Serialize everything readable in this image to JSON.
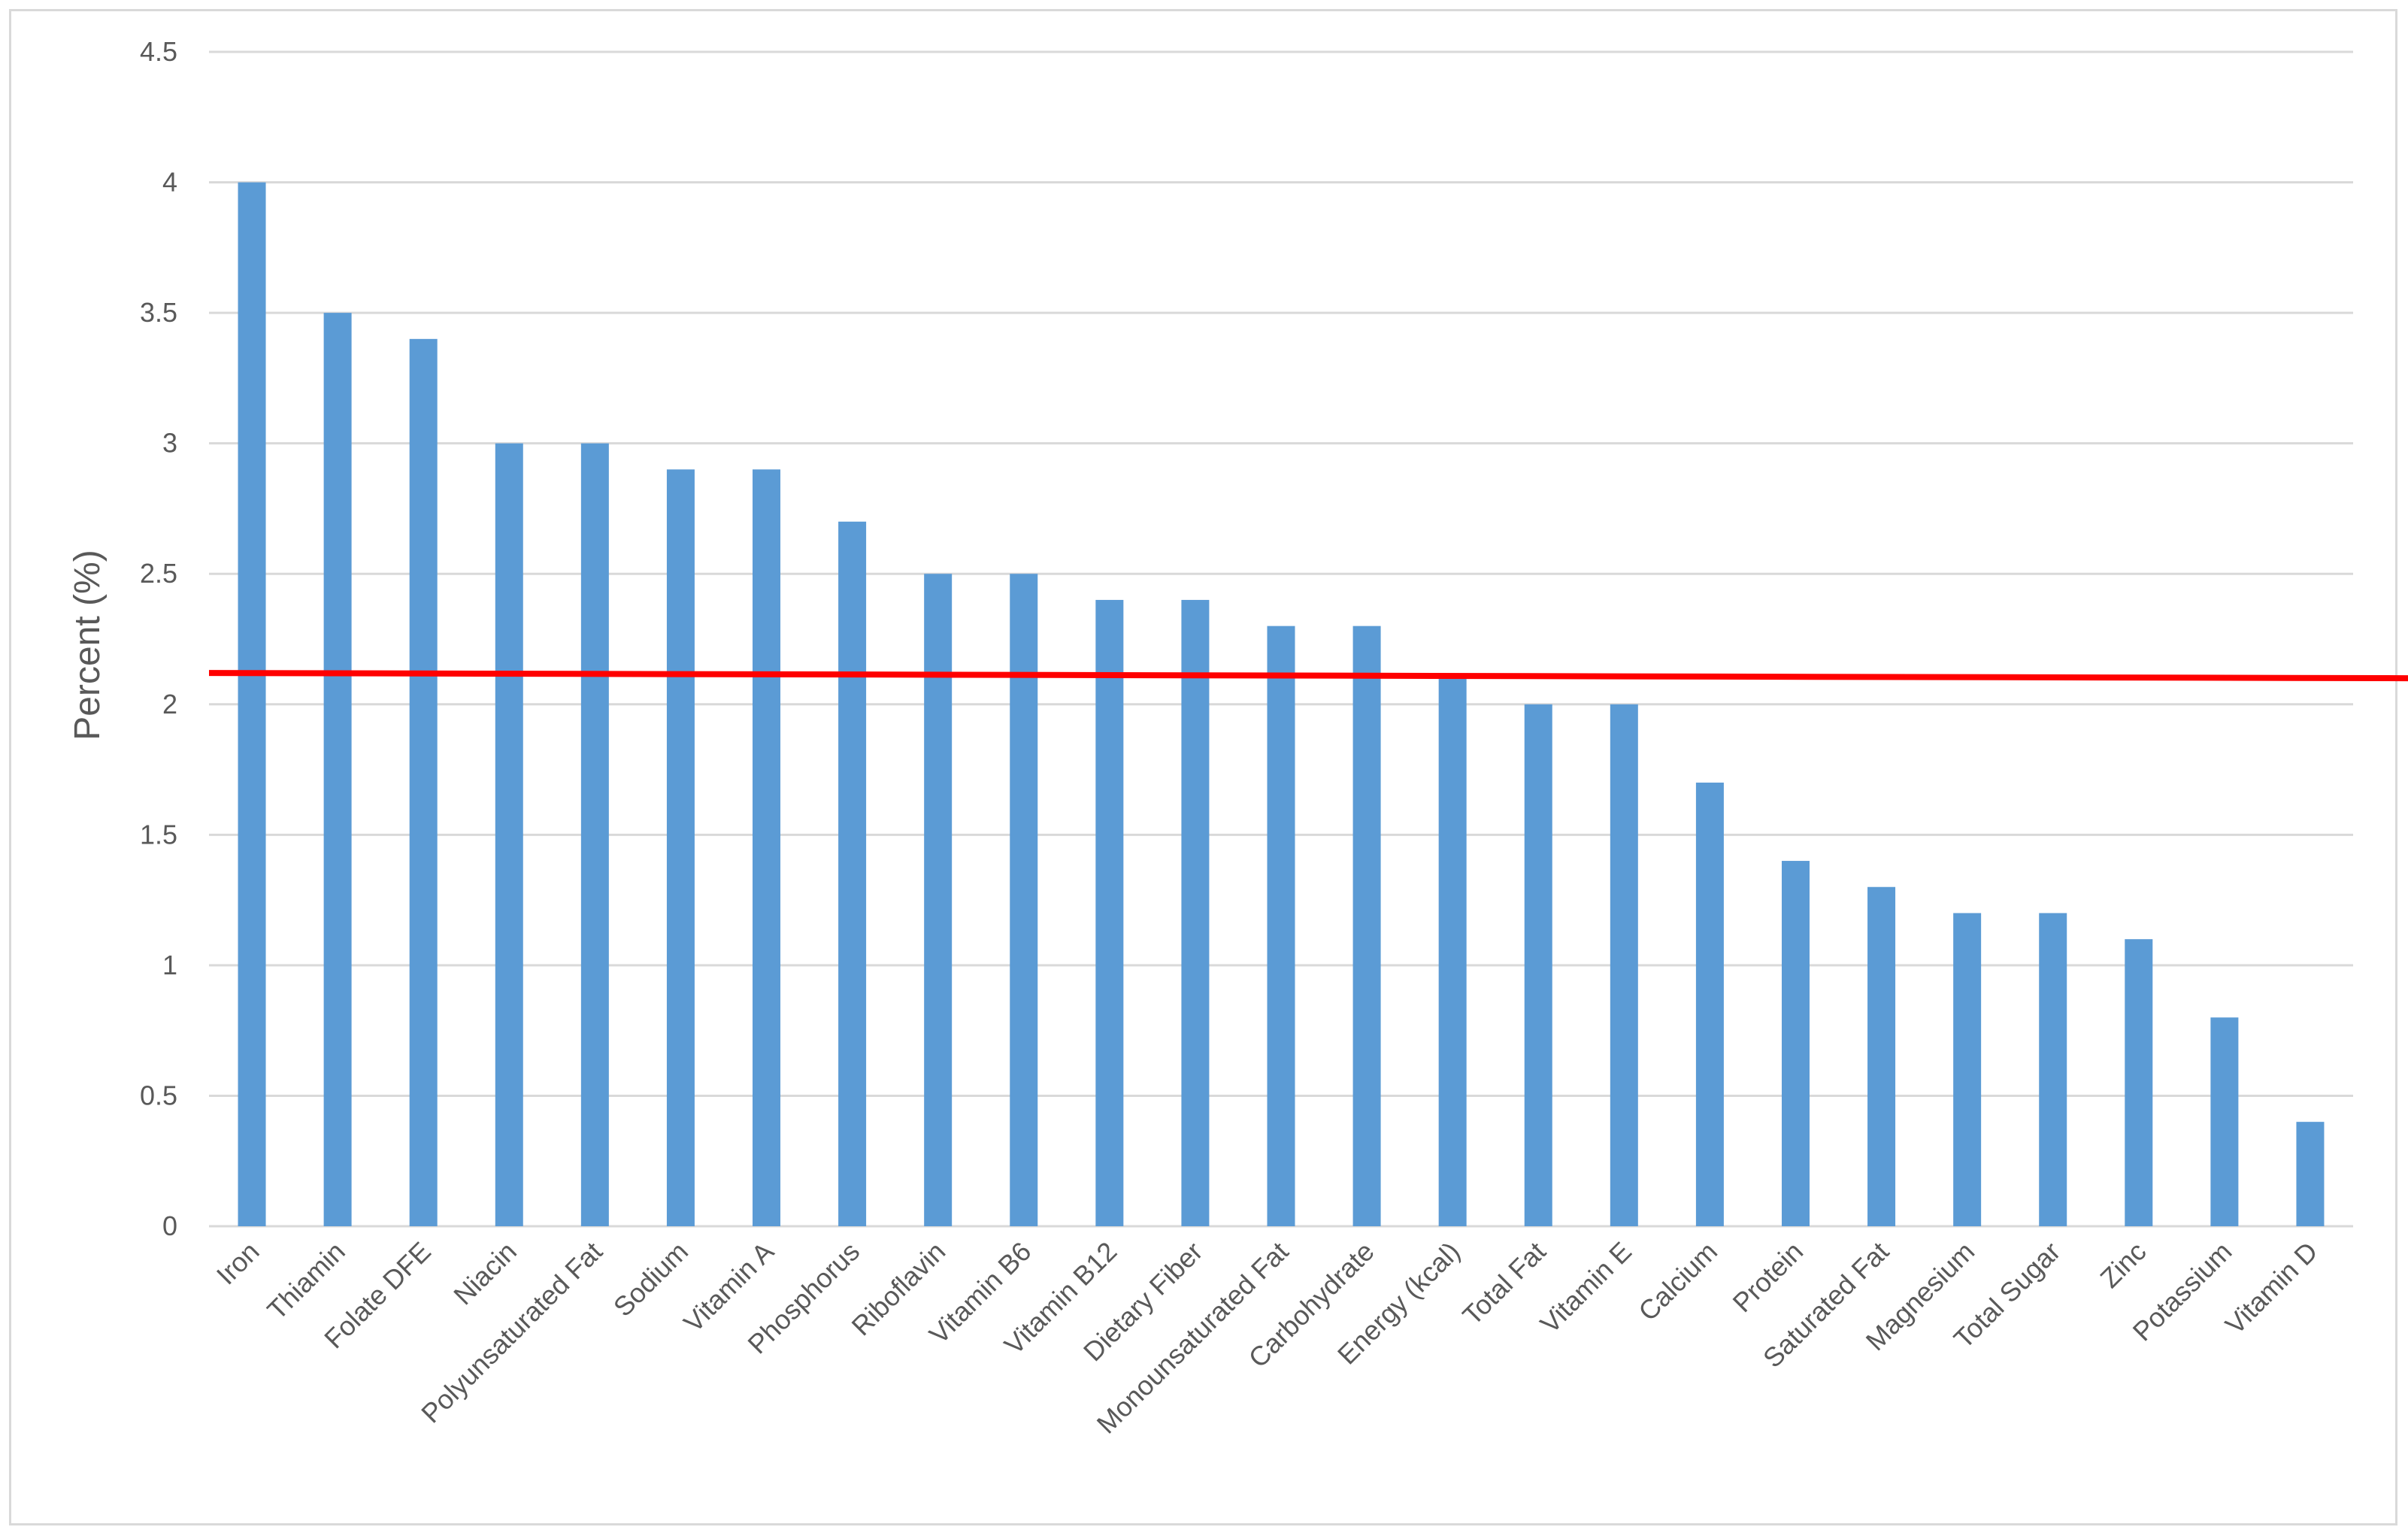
{
  "chart_data": {
    "type": "bar",
    "title": "",
    "xlabel": "",
    "ylabel": "Percent (%)",
    "ylim": [
      0,
      4.5
    ],
    "yticks": [
      "0",
      "0.5",
      "1",
      "1.5",
      "2",
      "2.5",
      "3",
      "3.5",
      "4",
      "4.5"
    ],
    "grid": true,
    "legend": "none",
    "categories": [
      "Iron",
      "Thiamin",
      "Folate DFE",
      "Niacin",
      "Polyunsaturated Fat",
      "Sodium",
      "Vitamin A",
      "Phosphorus",
      "Riboflavin",
      "Vitamin B6",
      "Vitamin B12",
      "Dietary Fiber",
      "Monounsaturated Fat",
      "Carbohydrate",
      "Energy (kcal)",
      "Total Fat",
      "Vitamin E",
      "Calcium",
      "Protein",
      "Saturated Fat",
      "Magnesium",
      "Total Sugar",
      "Zinc",
      "Potassium",
      "Vitamin D"
    ],
    "values": [
      4.0,
      3.5,
      3.4,
      3.0,
      3.0,
      2.9,
      2.9,
      2.7,
      2.5,
      2.5,
      2.4,
      2.4,
      2.3,
      2.3,
      2.1,
      2.0,
      2.0,
      1.7,
      1.4,
      1.3,
      1.2,
      1.2,
      1.1,
      0.8,
      0.4
    ],
    "reference_line": {
      "y_start": 2.12,
      "y_end": 2.1,
      "color": "#ff0000"
    },
    "colors": {
      "bar": "#5b9bd5",
      "grid": "#d9d9d9",
      "text": "#595959",
      "border": "#d9d9d9"
    }
  }
}
